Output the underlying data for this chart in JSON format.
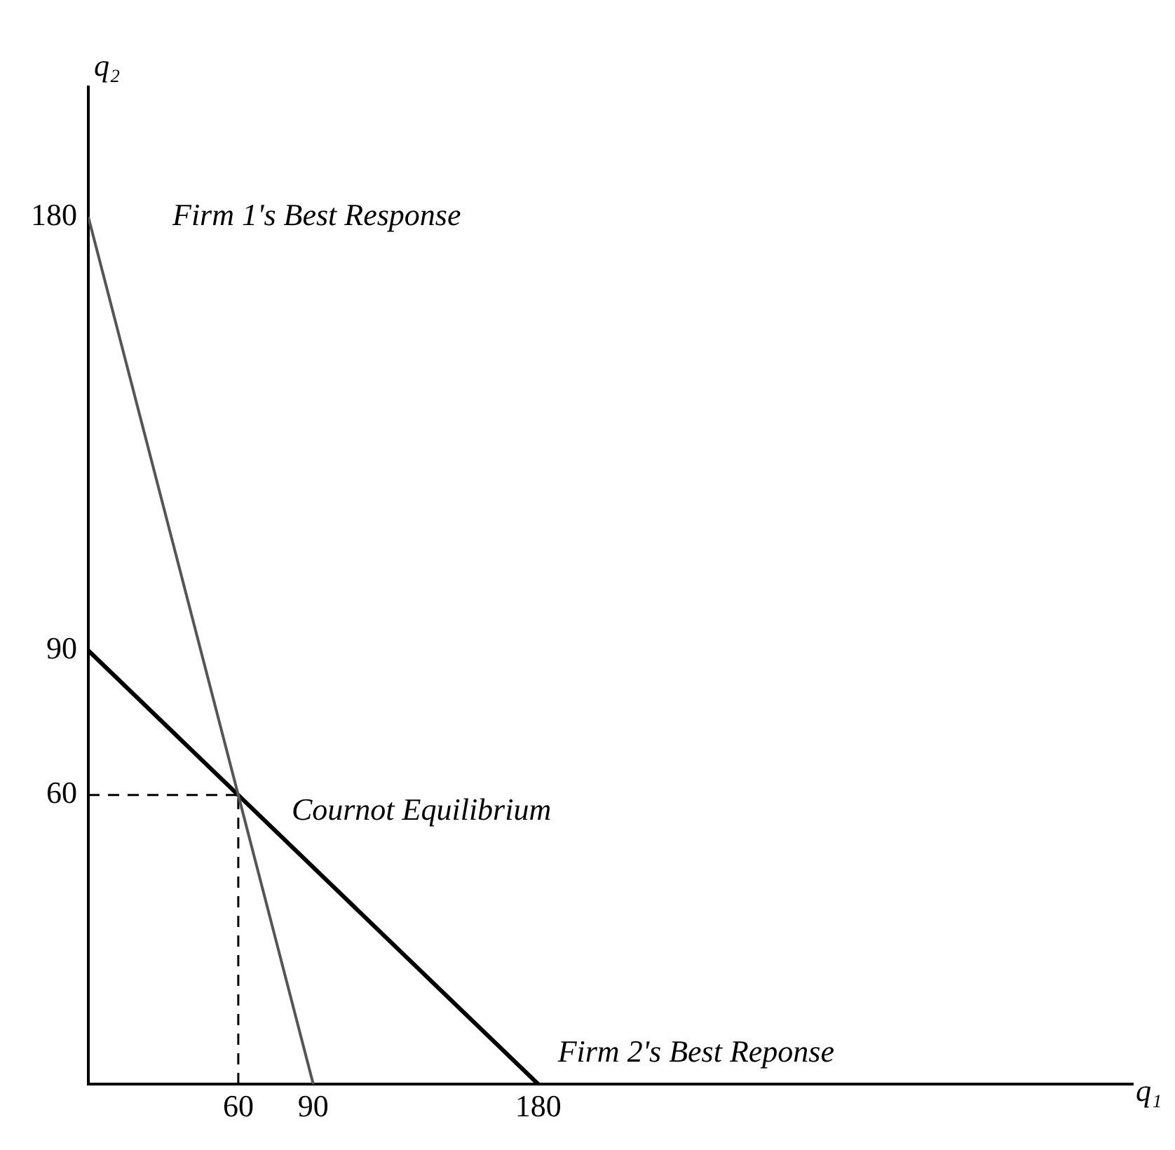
{
  "chart_data": {
    "type": "line",
    "xlabel": "q₁",
    "ylabel": "q₂",
    "xlim": [
      0,
      418
    ],
    "ylim": [
      0,
      207
    ],
    "xticks": [
      60,
      90,
      180
    ],
    "yticks": [
      60,
      90,
      180
    ],
    "grid": false,
    "legend": false,
    "marker": "none",
    "series": [
      {
        "name": "Firm 1's Best Response",
        "color": "#555555",
        "x": [
          0,
          90
        ],
        "values": [
          180,
          0
        ]
      },
      {
        "name": "Firm 2's Best Reponse",
        "color": "#000000",
        "x": [
          0,
          180
        ],
        "values": [
          90,
          0
        ]
      },
      {
        "color": "#000000",
        "x": [
          0,
          60
        ],
        "values": [
          60,
          60
        ],
        "line_style": "dashed"
      },
      {
        "color": "#000000",
        "x": [
          60,
          60
        ],
        "values": [
          0,
          60
        ],
        "line_style": "dashed"
      }
    ],
    "annotations": [
      {
        "text": "Cournot Equilibrium",
        "x": 60,
        "y": 60
      }
    ]
  }
}
